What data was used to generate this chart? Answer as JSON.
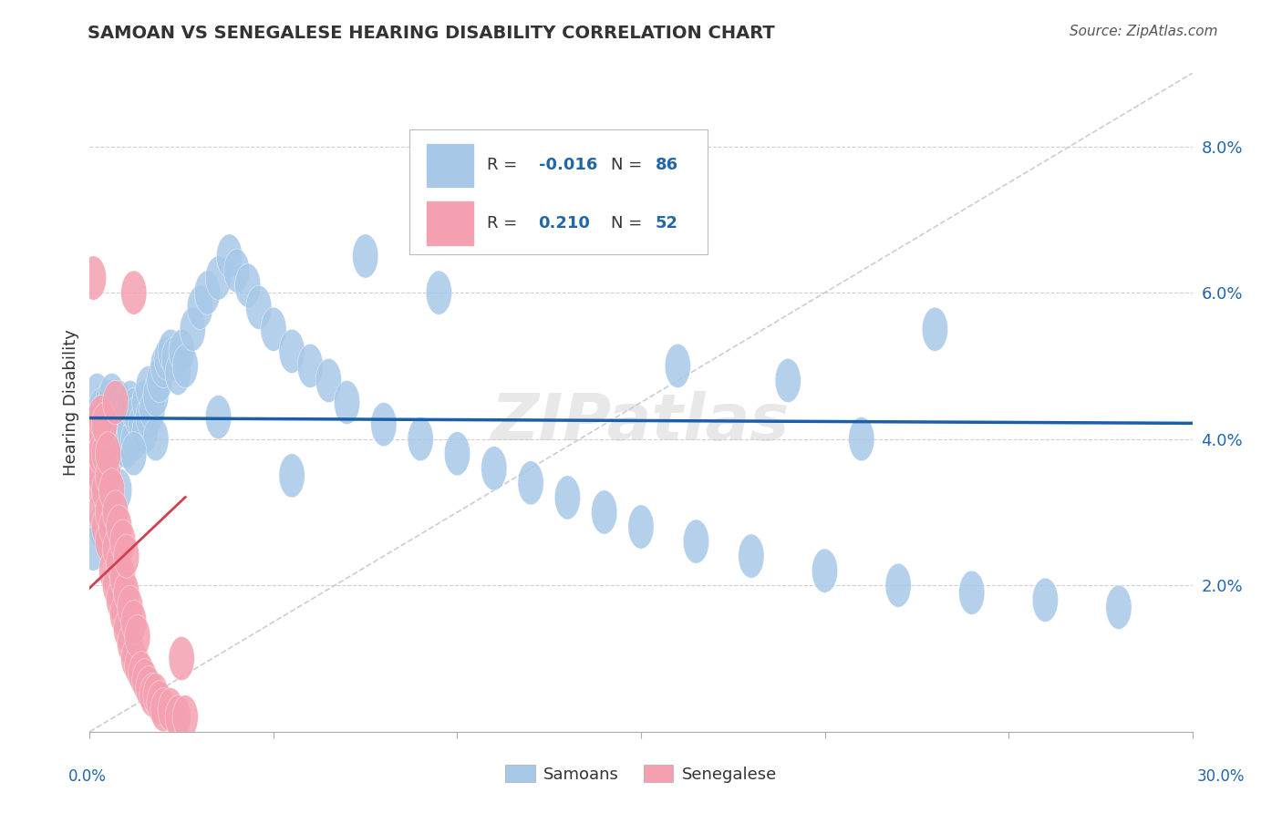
{
  "title": "SAMOAN VS SENEGALESE HEARING DISABILITY CORRELATION CHART",
  "source": "Source: ZipAtlas.com",
  "ylabel": "Hearing Disability",
  "xlim": [
    0.0,
    0.3
  ],
  "ylim": [
    0.0,
    0.09
  ],
  "yticks": [
    0.02,
    0.04,
    0.06,
    0.08
  ],
  "ytick_labels": [
    "2.0%",
    "4.0%",
    "6.0%",
    "8.0%"
  ],
  "legend_samoans": "Samoans",
  "legend_senegalese": "Senegalese",
  "R_samoans": -0.016,
  "N_samoans": 86,
  "R_senegalese": 0.21,
  "N_senegalese": 52,
  "samoan_color": "#a8c8e8",
  "senegalese_color": "#f4a0b0",
  "samoan_line_color": "#1a5fa8",
  "senegalese_line_color": "#d04050",
  "diagonal_color": "#c8c8c8",
  "background_color": "#ffffff",
  "grid_color": "#d0d0d0",
  "samoans_x": [
    0.001,
    0.002,
    0.002,
    0.002,
    0.003,
    0.003,
    0.003,
    0.004,
    0.004,
    0.005,
    0.005,
    0.005,
    0.006,
    0.006,
    0.006,
    0.007,
    0.007,
    0.008,
    0.008,
    0.008,
    0.009,
    0.009,
    0.01,
    0.01,
    0.011,
    0.011,
    0.012,
    0.012,
    0.013,
    0.014,
    0.015,
    0.015,
    0.016,
    0.016,
    0.017,
    0.018,
    0.019,
    0.02,
    0.021,
    0.022,
    0.023,
    0.024,
    0.025,
    0.026,
    0.028,
    0.03,
    0.032,
    0.035,
    0.038,
    0.04,
    0.043,
    0.046,
    0.05,
    0.055,
    0.06,
    0.065,
    0.07,
    0.08,
    0.09,
    0.1,
    0.11,
    0.12,
    0.13,
    0.14,
    0.15,
    0.165,
    0.18,
    0.2,
    0.22,
    0.24,
    0.26,
    0.28,
    0.16,
    0.19,
    0.21,
    0.23,
    0.095,
    0.075,
    0.055,
    0.035,
    0.018,
    0.012,
    0.008,
    0.005,
    0.003,
    0.001
  ],
  "samoans_y": [
    0.04,
    0.038,
    0.042,
    0.046,
    0.038,
    0.041,
    0.044,
    0.04,
    0.043,
    0.039,
    0.042,
    0.045,
    0.04,
    0.043,
    0.046,
    0.041,
    0.044,
    0.039,
    0.042,
    0.045,
    0.04,
    0.044,
    0.039,
    0.043,
    0.041,
    0.045,
    0.04,
    0.044,
    0.043,
    0.042,
    0.041,
    0.045,
    0.043,
    0.047,
    0.044,
    0.046,
    0.048,
    0.05,
    0.051,
    0.052,
    0.051,
    0.049,
    0.052,
    0.05,
    0.055,
    0.058,
    0.06,
    0.062,
    0.065,
    0.063,
    0.061,
    0.058,
    0.055,
    0.052,
    0.05,
    0.048,
    0.045,
    0.042,
    0.04,
    0.038,
    0.036,
    0.034,
    0.032,
    0.03,
    0.028,
    0.026,
    0.024,
    0.022,
    0.02,
    0.019,
    0.018,
    0.017,
    0.05,
    0.048,
    0.04,
    0.055,
    0.06,
    0.065,
    0.035,
    0.043,
    0.04,
    0.038,
    0.033,
    0.03,
    0.028,
    0.025
  ],
  "senegalese_x": [
    0.001,
    0.001,
    0.001,
    0.002,
    0.002,
    0.002,
    0.003,
    0.003,
    0.003,
    0.003,
    0.004,
    0.004,
    0.004,
    0.004,
    0.005,
    0.005,
    0.005,
    0.005,
    0.006,
    0.006,
    0.006,
    0.007,
    0.007,
    0.007,
    0.008,
    0.008,
    0.008,
    0.009,
    0.009,
    0.009,
    0.01,
    0.01,
    0.01,
    0.011,
    0.011,
    0.012,
    0.012,
    0.013,
    0.013,
    0.014,
    0.015,
    0.016,
    0.017,
    0.018,
    0.019,
    0.02,
    0.022,
    0.024,
    0.026,
    0.012,
    0.007,
    0.025
  ],
  "senegalese_y": [
    0.04,
    0.038,
    0.062,
    0.034,
    0.038,
    0.042,
    0.03,
    0.035,
    0.038,
    0.043,
    0.028,
    0.033,
    0.038,
    0.042,
    0.026,
    0.03,
    0.035,
    0.038,
    0.022,
    0.028,
    0.033,
    0.02,
    0.025,
    0.03,
    0.018,
    0.023,
    0.028,
    0.016,
    0.021,
    0.026,
    0.014,
    0.019,
    0.024,
    0.012,
    0.017,
    0.01,
    0.015,
    0.009,
    0.013,
    0.008,
    0.007,
    0.006,
    0.005,
    0.005,
    0.004,
    0.003,
    0.003,
    0.002,
    0.002,
    0.06,
    0.045,
    0.01
  ]
}
